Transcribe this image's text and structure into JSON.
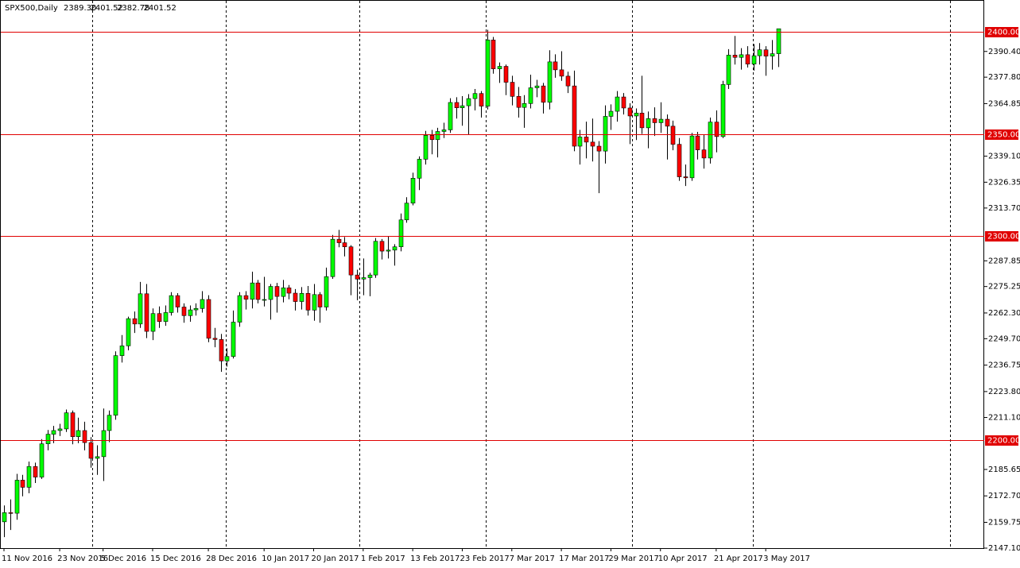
{
  "chart_data": {
    "type": "candlestick",
    "title": "SPX500,Daily",
    "header_values": [
      "2389.30",
      "2401.52",
      "2382.78",
      "2401.52"
    ],
    "categories": [
      "11 Nov 2016",
      null,
      null,
      null,
      null,
      null,
      null,
      null,
      null,
      "23 Nov 2016",
      null,
      null,
      null,
      null,
      null,
      null,
      "5 Dec 2016",
      null,
      null,
      null,
      null,
      null,
      null,
      null,
      "15 Dec 2016",
      null,
      null,
      null,
      null,
      null,
      null,
      null,
      null,
      "28 Dec 2016",
      null,
      null,
      null,
      null,
      null,
      null,
      null,
      null,
      "10 Jan 2017",
      null,
      null,
      null,
      null,
      null,
      null,
      null,
      "20 Jan 2017",
      null,
      null,
      null,
      null,
      null,
      null,
      null,
      "1 Feb 2017",
      null,
      null,
      null,
      null,
      null,
      null,
      null,
      "13 Feb 2017",
      null,
      null,
      null,
      null,
      null,
      null,
      null,
      "23 Feb 2017",
      null,
      null,
      null,
      null,
      null,
      null,
      null,
      "7 Mar 2017",
      null,
      null,
      null,
      null,
      null,
      null,
      null,
      "17 Mar 2017",
      null,
      null,
      null,
      null,
      null,
      null,
      null,
      "29 Mar 2017",
      null,
      null,
      null,
      null,
      null,
      null,
      null,
      "10 Apr 2017",
      null,
      null,
      null,
      null,
      null,
      null,
      null,
      null,
      "21 Apr 2017",
      null,
      null,
      null,
      null,
      null,
      null,
      null,
      "3 May 2017",
      null,
      null
    ],
    "open": [
      2160.0,
      2164.5,
      2164.2,
      2180.4,
      2176.9,
      2187.1,
      2181.9,
      2198.2,
      2202.9,
      2204.7,
      2205.5,
      2213.4,
      2201.7,
      2204.7,
      2198.8,
      2191.1,
      2191.9,
      2204.7,
      2212.2,
      2241.4,
      2246.2,
      2259.5,
      2256.9,
      2271.7,
      2253.3,
      2262.0,
      2258.1,
      2262.5,
      2270.8,
      2265.2,
      2261.0,
      2263.8,
      2264.5,
      2268.9,
      2249.9,
      2249.3,
      2238.8,
      2241.0,
      2257.8,
      2270.8,
      2269.0,
      2277.0,
      2268.9,
      2268.9,
      2275.3,
      2270.4,
      2274.6,
      2272.0,
      2267.9,
      2271.9,
      2263.7,
      2271.3,
      2265.2,
      2280.1,
      2298.4,
      2296.7,
      2294.7,
      2280.9,
      2278.9,
      2279.6,
      2280.9,
      2297.4,
      2292.6,
      2293.1,
      2294.7,
      2307.9,
      2316.1,
      2328.3,
      2337.6,
      2349.3,
      2347.2,
      2351.2,
      2352.0,
      2365.4,
      2362.8,
      2363.8,
      2367.3,
      2369.8,
      2363.6,
      2396.0,
      2381.9,
      2383.1,
      2375.3,
      2368.4,
      2363.0,
      2364.9,
      2372.6,
      2373.5,
      2365.5,
      2385.3,
      2381.4,
      2378.3,
      2373.5,
      2344.0,
      2348.5,
      2346.0,
      2344.0,
      2341.6,
      2358.6,
      2361.1,
      2368.1,
      2362.7,
      2358.8,
      2360.2,
      2353.0,
      2357.5,
      2355.5,
      2357.2,
      2353.8,
      2344.9,
      2329.0,
      2328.5,
      2349.0,
      2342.2,
      2338.2,
      2355.8,
      2348.7,
      2374.2,
      2388.6,
      2387.5,
      2388.8,
      2384.2,
      2388.3,
      2391.2,
      2388.1,
      2389.3
    ],
    "high": [
      2168.0,
      2171.0,
      2183.5,
      2183.0,
      2189.5,
      2189.0,
      2200.5,
      2205.0,
      2207.0,
      2208.0,
      2215.0,
      2214.5,
      2211.0,
      2209.0,
      2201.5,
      2197.5,
      2215.5,
      2214.5,
      2243.5,
      2251.5,
      2260.5,
      2263.0,
      2277.5,
      2276.5,
      2264.5,
      2265.5,
      2266.0,
      2272.5,
      2272.0,
      2267.0,
      2266.0,
      2267.0,
      2273.0,
      2271.0,
      2255.0,
      2252.0,
      2245.0,
      2263.5,
      2272.5,
      2273.0,
      2282.5,
      2278.5,
      2280.0,
      2276.5,
      2277.0,
      2278.5,
      2276.0,
      2274.0,
      2275.0,
      2275.5,
      2276.5,
      2272.5,
      2284.5,
      2300.5,
      2303.0,
      2299.5,
      2295.5,
      2283.5,
      2289.0,
      2282.0,
      2299.0,
      2298.5,
      2300.0,
      2296.0,
      2311.0,
      2319.0,
      2331.0,
      2339.0,
      2351.5,
      2352.0,
      2353.0,
      2355.5,
      2367.5,
      2368.0,
      2368.5,
      2369.5,
      2372.0,
      2371.0,
      2401.0,
      2397.5,
      2385.0,
      2384.0,
      2378.5,
      2373.0,
      2369.0,
      2379.0,
      2376.5,
      2375.0,
      2391.0,
      2389.0,
      2390.5,
      2380.5,
      2381.0,
      2352.0,
      2356.0,
      2357.5,
      2346.5,
      2364.0,
      2364.5,
      2371.0,
      2370.0,
      2365.0,
      2362.5,
      2378.5,
      2361.0,
      2363.0,
      2365.5,
      2359.5,
      2356.5,
      2348.0,
      2335.0,
      2350.5,
      2351.0,
      2349.5,
      2358.0,
      2361.5,
      2376.0,
      2391.5,
      2398.0,
      2392.0,
      2393.0,
      2394.0,
      2394.5,
      2393.0,
      2396.0,
      2401.52
    ],
    "low": [
      2152.5,
      2156.0,
      2161.0,
      2172.5,
      2174.0,
      2179.0,
      2181.0,
      2195.0,
      2198.5,
      2202.0,
      2204.0,
      2198.0,
      2198.5,
      2195.0,
      2186.5,
      2183.0,
      2180.0,
      2199.0,
      2210.0,
      2238.0,
      2244.0,
      2252.5,
      2255.0,
      2250.0,
      2249.0,
      2255.0,
      2256.0,
      2261.0,
      2262.5,
      2257.5,
      2258.0,
      2261.0,
      2262.5,
      2248.0,
      2245.5,
      2233.5,
      2236.0,
      2240.0,
      2255.5,
      2264.0,
      2264.5,
      2267.0,
      2265.5,
      2259.0,
      2262.5,
      2267.5,
      2269.0,
      2263.5,
      2264.0,
      2261.0,
      2258.5,
      2257.5,
      2263.5,
      2279.0,
      2294.5,
      2290.0,
      2271.0,
      2268.5,
      2271.0,
      2270.5,
      2279.5,
      2288.5,
      2289.0,
      2285.5,
      2292.5,
      2306.5,
      2315.0,
      2322.5,
      2335.0,
      2340.0,
      2338.5,
      2348.0,
      2350.5,
      2357.5,
      2354.0,
      2349.5,
      2361.5,
      2358.0,
      2362.0,
      2379.5,
      2375.0,
      2369.0,
      2364.0,
      2358.0,
      2353.0,
      2362.5,
      2368.0,
      2360.0,
      2362.0,
      2377.5,
      2376.0,
      2370.0,
      2341.5,
      2335.0,
      2338.0,
      2336.5,
      2321.0,
      2335.5,
      2352.0,
      2356.0,
      2359.5,
      2345.0,
      2347.0,
      2350.0,
      2343.0,
      2349.0,
      2350.5,
      2337.5,
      2342.0,
      2327.0,
      2324.5,
      2327.0,
      2337.5,
      2333.0,
      2335.5,
      2341.0,
      2348.0,
      2372.0,
      2384.0,
      2381.5,
      2382.5,
      2381.0,
      2384.0,
      2378.5,
      2381.5,
      2382.78
    ],
    "close": [
      2164.5,
      2164.2,
      2180.4,
      2176.9,
      2187.1,
      2181.9,
      2198.2,
      2202.9,
      2204.7,
      2205.5,
      2213.4,
      2201.7,
      2204.7,
      2198.8,
      2191.1,
      2191.9,
      2204.7,
      2212.2,
      2241.4,
      2246.2,
      2259.5,
      2256.9,
      2271.7,
      2253.3,
      2262.0,
      2258.1,
      2262.5,
      2270.8,
      2265.2,
      2261.0,
      2263.8,
      2264.5,
      2268.9,
      2249.9,
      2249.3,
      2238.8,
      2241.0,
      2257.8,
      2270.8,
      2269.0,
      2277.0,
      2268.9,
      2268.9,
      2275.3,
      2270.4,
      2274.6,
      2272.0,
      2267.9,
      2271.9,
      2263.7,
      2271.3,
      2265.2,
      2280.1,
      2298.4,
      2296.7,
      2294.7,
      2280.9,
      2278.9,
      2279.6,
      2280.9,
      2297.4,
      2292.6,
      2293.1,
      2294.7,
      2307.9,
      2316.1,
      2328.3,
      2337.6,
      2349.3,
      2347.2,
      2351.2,
      2352.0,
      2365.4,
      2362.8,
      2363.8,
      2367.3,
      2369.8,
      2363.6,
      2396.0,
      2381.9,
      2383.1,
      2375.3,
      2368.4,
      2363.0,
      2364.9,
      2372.6,
      2373.5,
      2365.5,
      2385.3,
      2381.4,
      2378.3,
      2373.5,
      2344.0,
      2348.5,
      2346.0,
      2344.0,
      2341.6,
      2358.6,
      2361.1,
      2368.1,
      2362.7,
      2358.8,
      2360.2,
      2353.0,
      2357.5,
      2355.5,
      2357.2,
      2353.8,
      2344.9,
      2329.0,
      2328.5,
      2349.0,
      2342.2,
      2338.2,
      2355.8,
      2348.7,
      2374.2,
      2388.6,
      2387.5,
      2388.8,
      2384.2,
      2388.3,
      2391.2,
      2388.1,
      2389.3,
      2401.52
    ],
    "up_color": "#00ff00",
    "down_color": "#ff0000",
    "level_color": "#e00000",
    "levels": [
      {
        "value": 2400,
        "label": "2400.00"
      },
      {
        "value": 2350,
        "label": "2350.00"
      },
      {
        "value": 2300,
        "label": "2300.00"
      },
      {
        "value": 2200,
        "label": "2200.00"
      }
    ],
    "ylim": [
      2147.1,
      2415.6
    ],
    "yticks": [
      {
        "value": 2390.4,
        "label": "2390.40"
      },
      {
        "value": 2377.8,
        "label": "2377.80"
      },
      {
        "value": 2364.85,
        "label": "2364.85"
      },
      {
        "value": 2339.1,
        "label": "2339.10"
      },
      {
        "value": 2326.35,
        "label": "2326.35"
      },
      {
        "value": 2313.7,
        "label": "2313.70"
      },
      {
        "value": 2287.85,
        "label": "2287.85"
      },
      {
        "value": 2275.25,
        "label": "2275.25"
      },
      {
        "value": 2262.3,
        "label": "2262.30"
      },
      {
        "value": 2249.7,
        "label": "2249.70"
      },
      {
        "value": 2236.75,
        "label": "2236.75"
      },
      {
        "value": 2223.8,
        "label": "2223.80"
      },
      {
        "value": 2211.1,
        "label": "2211.10"
      },
      {
        "value": 2185.65,
        "label": "2185.65"
      },
      {
        "value": 2172.7,
        "label": "2172.70"
      },
      {
        "value": 2159.75,
        "label": "2159.75"
      },
      {
        "value": 2147.1,
        "label": "2147.10"
      }
    ]
  }
}
